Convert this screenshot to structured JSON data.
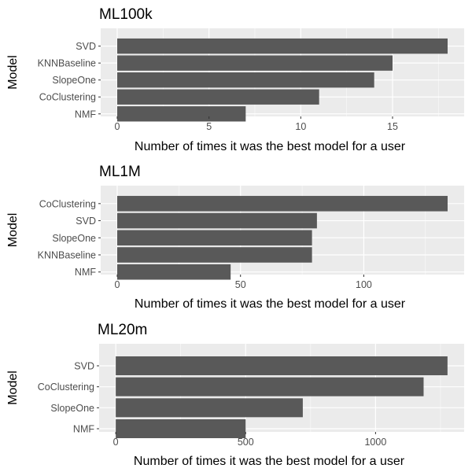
{
  "chart_data": [
    {
      "type": "bar",
      "orientation": "horizontal",
      "title": "ML100k",
      "xlabel": "Number of times it was the best model for a user",
      "ylabel": "Model",
      "categories": [
        "SVD",
        "KNNBaseline",
        "SlopeOne",
        "CoClustering",
        "NMF"
      ],
      "values": [
        18,
        15,
        14,
        11,
        7
      ],
      "xlim": [
        -0.9,
        18.9
      ],
      "xticks": [
        0,
        5,
        10,
        15
      ],
      "grid": true
    },
    {
      "type": "bar",
      "orientation": "horizontal",
      "title": "ML1M",
      "xlabel": "Number of times it was the best model for a user",
      "ylabel": "Model",
      "categories": [
        "CoClustering",
        "SVD",
        "SlopeOne",
        "KNNBaseline",
        "NMF"
      ],
      "values": [
        134,
        81,
        79,
        79,
        46
      ],
      "xlim": [
        -6.7,
        140.7
      ],
      "xticks": [
        0,
        50,
        100
      ],
      "grid": true
    },
    {
      "type": "bar",
      "orientation": "horizontal",
      "title": "ML20m",
      "xlabel": "Number of times it was the best model for a user",
      "ylabel": "Model",
      "categories": [
        "SVD",
        "CoClustering",
        "SlopeOne",
        "NMF"
      ],
      "values": [
        1277,
        1185,
        720,
        500
      ],
      "xlim": [
        -64,
        1341
      ],
      "xticks": [
        0,
        500,
        1000
      ],
      "grid": true
    }
  ],
  "colors": {
    "panel_background": "#ebebeb",
    "grid_major": "#ffffff",
    "bar_fill": "#595959",
    "tick_text": "#4d4d4d",
    "text": "#000000"
  }
}
